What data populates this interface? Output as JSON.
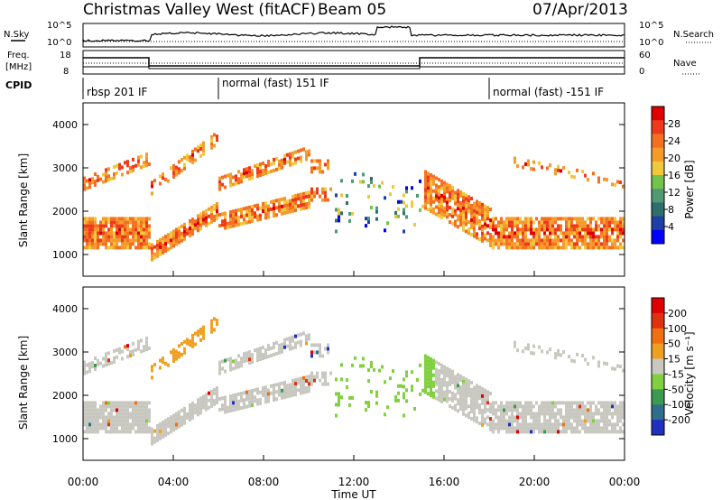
{
  "header": {
    "title": "Christmas Valley West (fitACF)",
    "beam": "Beam 05",
    "date": "07/Apr/2013"
  },
  "top_panels": {
    "nsky_label": "N.Sky",
    "nsearch_label": "N.Search",
    "freq_label_1": "Freq.",
    "freq_label_2": "[MHz]",
    "nave_label": "Nave",
    "cpid_label": "CPID",
    "noise_left_ticks": [
      "10^5",
      "10^0"
    ],
    "noise_right_ticks": [
      "10^5",
      "10^0"
    ],
    "freq_ticks": [
      "18",
      "8"
    ],
    "nave_ticks": [
      "60",
      "0"
    ],
    "cpid_segments": [
      {
        "label": "rbsp 201 IF",
        "start_hour": 0
      },
      {
        "label": "normal (fast) 151 IF",
        "start_hour": 6
      },
      {
        "label": "normal (fast) -151 IF",
        "start_hour": 18
      }
    ]
  },
  "chart_data": [
    {
      "type": "heatmap",
      "title": "",
      "xlabel": "",
      "ylabel": "Slant Range [km]",
      "xlim": [
        0,
        24
      ],
      "ylim": [
        500,
        4500
      ],
      "yticks": [
        "1000",
        "2000",
        "3000",
        "4000"
      ],
      "colorbar_label": "Power [dB]",
      "colorbar_ticks": [
        "28",
        "24",
        "20",
        "16",
        "12",
        "8",
        "4"
      ],
      "colorscale": [
        "#0000ff",
        "#1e3fa8",
        "#2e6e6e",
        "#4f9a72",
        "#73c24a",
        "#f0c83a",
        "#f59b2a",
        "#f47020",
        "#ee3a1a",
        "#e00000"
      ]
    },
    {
      "type": "heatmap",
      "title": "",
      "xlabel": "Time UT",
      "ylabel": "Slant Range [km]",
      "xlim": [
        0,
        24
      ],
      "ylim": [
        500,
        4500
      ],
      "yticks": [
        "1000",
        "2000",
        "3000",
        "4000"
      ],
      "xticks": [
        "00:00",
        "04:00",
        "08:00",
        "12:00",
        "16:00",
        "20:00",
        "00:00"
      ],
      "colorbar_label": "Velocity [m s⁻¹]",
      "colorbar_ticks": [
        "200",
        "100",
        "50",
        "15",
        "-15",
        "-50",
        "-100",
        "-200"
      ],
      "colorscale": [
        "#2030c0",
        "#2e6e8a",
        "#3c9a50",
        "#80d040",
        "#c8c8c0",
        "#f0a020",
        "#f07010",
        "#e03010",
        "#e00000"
      ]
    }
  ]
}
